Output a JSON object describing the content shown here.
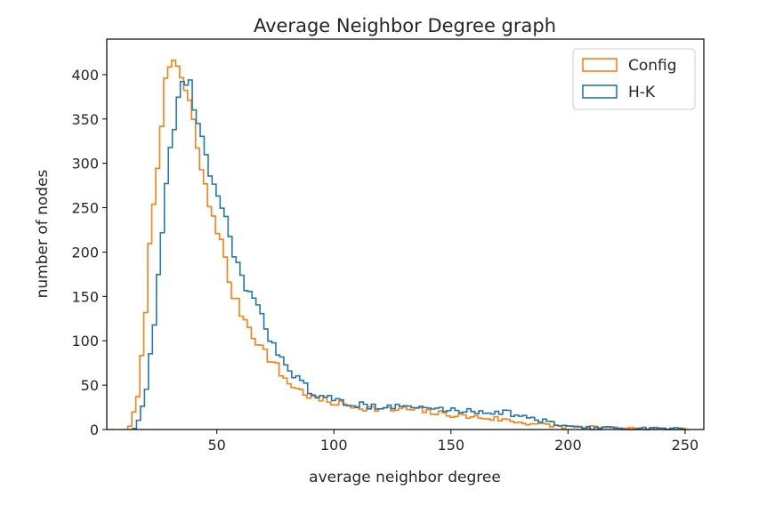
{
  "chart_data": {
    "type": "histogram",
    "title": "Average Neighbor Degree graph",
    "xlabel": "average neighbor degree",
    "ylabel": "number of nodes",
    "xlim": [
      3,
      258
    ],
    "ylim": [
      0,
      440
    ],
    "xticks": [
      50,
      100,
      150,
      200,
      250
    ],
    "yticks": [
      0,
      50,
      100,
      150,
      200,
      250,
      300,
      350,
      400
    ],
    "grid": false,
    "legend_position": "top-right",
    "histtype": "step",
    "bin_width": 1.7,
    "series": [
      {
        "name": "Config",
        "color": "#ff7f0e",
        "anchors": [
          [
            12,
            0
          ],
          [
            14,
            12
          ],
          [
            16,
            30
          ],
          [
            18,
            80
          ],
          [
            20,
            150
          ],
          [
            22,
            230
          ],
          [
            24,
            280
          ],
          [
            26,
            340
          ],
          [
            28,
            385
          ],
          [
            30,
            400
          ],
          [
            32,
            420
          ],
          [
            34,
            405
          ],
          [
            36,
            385
          ],
          [
            38,
            370
          ],
          [
            40,
            345
          ],
          [
            42,
            315
          ],
          [
            44,
            285
          ],
          [
            46,
            260
          ],
          [
            48,
            245
          ],
          [
            50,
            230
          ],
          [
            52,
            210
          ],
          [
            54,
            185
          ],
          [
            56,
            160
          ],
          [
            58,
            145
          ],
          [
            60,
            135
          ],
          [
            62,
            125
          ],
          [
            64,
            115
          ],
          [
            66,
            105
          ],
          [
            68,
            97
          ],
          [
            70,
            90
          ],
          [
            72,
            82
          ],
          [
            74,
            75
          ],
          [
            76,
            70
          ],
          [
            78,
            60
          ],
          [
            80,
            55
          ],
          [
            82,
            50
          ],
          [
            85,
            45
          ],
          [
            88,
            40
          ],
          [
            92,
            35
          ],
          [
            96,
            32
          ],
          [
            100,
            30
          ],
          [
            105,
            28
          ],
          [
            110,
            26
          ],
          [
            115,
            24
          ],
          [
            120,
            23
          ],
          [
            125,
            22
          ],
          [
            130,
            23
          ],
          [
            135,
            22
          ],
          [
            140,
            20
          ],
          [
            145,
            18
          ],
          [
            150,
            17
          ],
          [
            155,
            15
          ],
          [
            160,
            14
          ],
          [
            165,
            13
          ],
          [
            170,
            12
          ],
          [
            175,
            10
          ],
          [
            180,
            8
          ],
          [
            185,
            7
          ],
          [
            190,
            5
          ],
          [
            195,
            4
          ],
          [
            200,
            3
          ],
          [
            205,
            2
          ],
          [
            210,
            2
          ],
          [
            220,
            1
          ],
          [
            230,
            1
          ],
          [
            240,
            1
          ],
          [
            250,
            0
          ]
        ]
      },
      {
        "name": "H-K",
        "color": "#1f77b4",
        "anchors": [
          [
            14,
            0
          ],
          [
            16,
            5
          ],
          [
            18,
            20
          ],
          [
            20,
            50
          ],
          [
            22,
            90
          ],
          [
            24,
            140
          ],
          [
            26,
            200
          ],
          [
            28,
            260
          ],
          [
            30,
            310
          ],
          [
            32,
            350
          ],
          [
            34,
            375
          ],
          [
            36,
            395
          ],
          [
            38,
            400
          ],
          [
            40,
            370
          ],
          [
            42,
            345
          ],
          [
            44,
            320
          ],
          [
            46,
            300
          ],
          [
            48,
            280
          ],
          [
            50,
            260
          ],
          [
            52,
            245
          ],
          [
            54,
            232
          ],
          [
            56,
            215
          ],
          [
            58,
            195
          ],
          [
            60,
            175
          ],
          [
            62,
            162
          ],
          [
            64,
            155
          ],
          [
            66,
            145
          ],
          [
            68,
            132
          ],
          [
            70,
            120
          ],
          [
            72,
            108
          ],
          [
            74,
            97
          ],
          [
            76,
            88
          ],
          [
            78,
            82
          ],
          [
            80,
            75
          ],
          [
            82,
            66
          ],
          [
            85,
            55
          ],
          [
            88,
            48
          ],
          [
            92,
            40
          ],
          [
            96,
            36
          ],
          [
            100,
            33
          ],
          [
            105,
            30
          ],
          [
            110,
            28
          ],
          [
            115,
            27
          ],
          [
            120,
            26
          ],
          [
            125,
            25
          ],
          [
            130,
            26
          ],
          [
            135,
            25
          ],
          [
            140,
            24
          ],
          [
            145,
            23
          ],
          [
            150,
            22
          ],
          [
            155,
            21
          ],
          [
            160,
            21
          ],
          [
            165,
            20
          ],
          [
            170,
            20
          ],
          [
            175,
            19
          ],
          [
            180,
            15
          ],
          [
            185,
            12
          ],
          [
            190,
            9
          ],
          [
            195,
            6
          ],
          [
            200,
            4
          ],
          [
            205,
            3
          ],
          [
            210,
            2
          ],
          [
            220,
            1
          ],
          [
            230,
            1
          ],
          [
            240,
            1
          ],
          [
            250,
            0
          ]
        ]
      }
    ]
  }
}
